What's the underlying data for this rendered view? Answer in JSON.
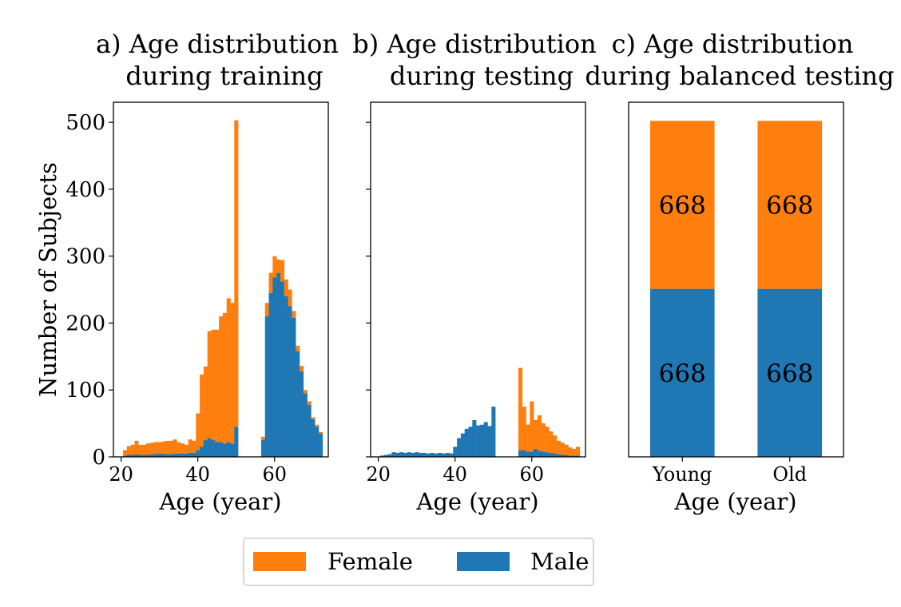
{
  "colors": {
    "female": "#ff7f0e",
    "male": "#1f77b4"
  },
  "legend": {
    "placement": "bottom-center",
    "items": [
      {
        "label": "Female",
        "color": "#ff7f0e"
      },
      {
        "label": "Male",
        "color": "#1f77b4"
      }
    ]
  },
  "shared_ylabel": "Number of Subjects",
  "chart_data": [
    {
      "id": "train",
      "type": "bar",
      "stacked": true,
      "title_line1": "a) Age distribution",
      "title_line2": "during training",
      "xlabel": "Age (year)",
      "ylabel": "Number of Subjects",
      "xlim": [
        18,
        74
      ],
      "ylim": [
        0,
        530
      ],
      "xticks": [
        20,
        40,
        60
      ],
      "yticks": [
        0,
        100,
        200,
        300,
        400,
        500
      ],
      "bin_width": 1,
      "x": [
        21,
        22,
        23,
        24,
        25,
        26,
        27,
        28,
        29,
        30,
        31,
        32,
        33,
        34,
        35,
        36,
        37,
        38,
        39,
        40,
        41,
        42,
        43,
        44,
        45,
        46,
        47,
        48,
        49,
        50,
        57,
        58,
        59,
        60,
        61,
        62,
        63,
        64,
        65,
        66,
        67,
        68,
        69,
        70,
        71,
        72
      ],
      "series": [
        {
          "name": "Male",
          "values": [
            2,
            3,
            3,
            4,
            3,
            3,
            3,
            4,
            4,
            5,
            5,
            4,
            4,
            5,
            5,
            5,
            5,
            6,
            6,
            10,
            15,
            25,
            28,
            25,
            22,
            22,
            20,
            22,
            20,
            45,
            25,
            210,
            245,
            268,
            275,
            262,
            240,
            225,
            208,
            158,
            128,
            95,
            78,
            56,
            45,
            35
          ]
        },
        {
          "name": "Female",
          "values": [
            8,
            13,
            15,
            20,
            15,
            15,
            17,
            17,
            18,
            17,
            18,
            20,
            20,
            21,
            17,
            15,
            13,
            20,
            18,
            55,
            108,
            110,
            160,
            165,
            168,
            188,
            195,
            215,
            210,
            458,
            5,
            20,
            30,
            32,
            20,
            32,
            25,
            25,
            10,
            8,
            8,
            5,
            5,
            3,
            3,
            2
          ]
        }
      ]
    },
    {
      "id": "test",
      "type": "bar",
      "stacked": true,
      "title_line1": "b) Age distribution",
      "title_line2": "during testing",
      "xlabel": "Age (year)",
      "xlim": [
        18,
        74
      ],
      "ylim": [
        0,
        530
      ],
      "xticks": [
        20,
        40,
        60
      ],
      "bin_width": 1,
      "x": [
        21,
        22,
        23,
        24,
        25,
        26,
        27,
        28,
        29,
        30,
        31,
        32,
        33,
        34,
        35,
        36,
        37,
        38,
        39,
        40,
        41,
        42,
        43,
        44,
        45,
        46,
        47,
        48,
        49,
        50,
        57,
        58,
        59,
        60,
        61,
        62,
        63,
        64,
        65,
        66,
        67,
        68,
        69,
        70,
        71,
        72
      ],
      "series": [
        {
          "name": "Male",
          "values": [
            2,
            3,
            4,
            7,
            6,
            7,
            6,
            7,
            6,
            7,
            6,
            6,
            5,
            6,
            5,
            6,
            5,
            6,
            5,
            15,
            28,
            35,
            42,
            45,
            55,
            47,
            48,
            52,
            46,
            75,
            10,
            10,
            8,
            8,
            12,
            9,
            8,
            7,
            6,
            5,
            4,
            3,
            3,
            2,
            2,
            2
          ]
        },
        {
          "name": "Female",
          "values": [
            0,
            0,
            0,
            0,
            0,
            0,
            0,
            0,
            0,
            0,
            0,
            0,
            0,
            0,
            0,
            0,
            0,
            0,
            0,
            0,
            0,
            0,
            0,
            0,
            0,
            0,
            0,
            0,
            0,
            0,
            123,
            65,
            40,
            75,
            43,
            53,
            42,
            38,
            32,
            27,
            20,
            18,
            15,
            12,
            10,
            13
          ]
        }
      ]
    },
    {
      "id": "balanced",
      "type": "bar",
      "stacked": true,
      "title_line1": "c) Age distribution",
      "title_line2": "during balanced testing",
      "xlabel": "Age (year)",
      "categories": [
        "Young",
        "Old"
      ],
      "ylim": [
        0,
        1410
      ],
      "series": [
        {
          "name": "Male",
          "values": [
            668,
            668
          ],
          "labels": [
            "668",
            "668"
          ]
        },
        {
          "name": "Female",
          "values": [
            668,
            668
          ],
          "labels": [
            "668",
            "668"
          ]
        }
      ]
    }
  ]
}
